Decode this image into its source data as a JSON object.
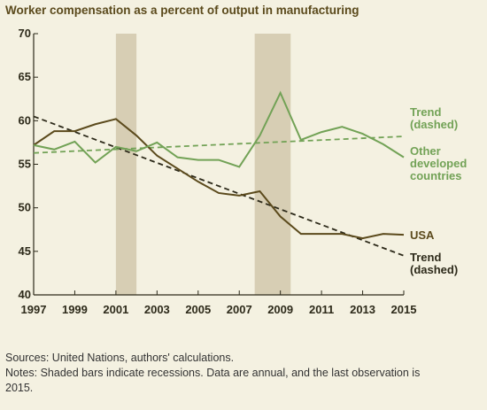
{
  "chart_data": {
    "type": "line",
    "title": "Worker compensation as a percent of output in manufacturing",
    "x": [
      1997,
      1998,
      1999,
      2000,
      2001,
      2002,
      2003,
      2004,
      2005,
      2006,
      2007,
      2008,
      2009,
      2010,
      2011,
      2012,
      2013,
      2014,
      2015
    ],
    "series": [
      {
        "name": "USA",
        "color": "#5b4a1c",
        "values": [
          57.2,
          58.8,
          58.8,
          59.6,
          60.2,
          58.3,
          56,
          54.5,
          53,
          51.7,
          51.4,
          51.9,
          49,
          47,
          47,
          47,
          46.5,
          47,
          46.9
        ]
      },
      {
        "name": "Other developed countries",
        "color": "#72a256",
        "values": [
          57.2,
          56.7,
          57.6,
          55.2,
          57,
          56.5,
          57.5,
          55.8,
          55.5,
          55.5,
          54.7,
          58.3,
          63.2,
          57.8,
          58.7,
          59.3,
          58.5,
          57.3,
          55.8
        ]
      }
    ],
    "trends": [
      {
        "label": "Trend (dashed)",
        "color": "#2d2a1a",
        "x": [
          1997,
          2015
        ],
        "values": [
          60.5,
          44.5
        ]
      },
      {
        "label": "Trend (dashed)",
        "color": "#72a256",
        "x": [
          1997,
          2015
        ],
        "values": [
          56.3,
          58.2
        ]
      }
    ],
    "recessions": [
      [
        2001,
        2002
      ],
      [
        2007.75,
        2009.5
      ]
    ],
    "recession_color": "#d7ceb4",
    "xlim": [
      1997,
      2015
    ],
    "xticks": [
      1997,
      1999,
      2001,
      2003,
      2005,
      2007,
      2009,
      2011,
      2013,
      2015
    ],
    "ylim": [
      40,
      70
    ],
    "yticks": [
      40,
      45,
      50,
      55,
      60,
      65,
      70
    ],
    "sources": "Sources: United Nations, authors' calculations.",
    "notes": "Notes: Shaded bars indicate recessions. Data are annual, and the last observation is 2015."
  }
}
